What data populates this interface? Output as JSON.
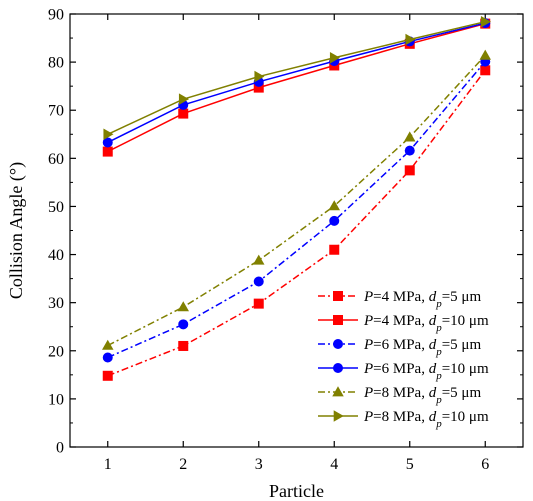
{
  "chart_data": {
    "type": "line",
    "xlabel": "Particle",
    "ylabel": "Collision Angle (°)",
    "x": [
      1,
      2,
      3,
      4,
      5,
      6
    ],
    "xlim": [
      0.5,
      6.5
    ],
    "ylim": [
      0,
      90
    ],
    "xticks": [
      "1",
      "2",
      "3",
      "4",
      "5",
      "6"
    ],
    "yticks": [
      "0",
      "10",
      "20",
      "30",
      "40",
      "50",
      "60",
      "70",
      "80",
      "90"
    ],
    "legend_position": "bottom-right",
    "grid": false,
    "series": [
      {
        "name": "P=4 MPa, dp=5 μm",
        "label": {
          "p": "P",
          "pv": "=4 MPa, ",
          "d": "d",
          "sub": "p",
          "dv": "=5 μm"
        },
        "values": [
          14.8,
          21.0,
          29.8,
          41.0,
          57.5,
          78.3
        ],
        "color": "#ff0000",
        "marker": "square",
        "dash": "dashdot"
      },
      {
        "name": "P=4 MPa, dp=10 μm",
        "label": {
          "p": "P",
          "pv": "=4 MPa, ",
          "d": "d",
          "sub": "p",
          "dv": "=10 μm"
        },
        "values": [
          61.4,
          69.3,
          74.7,
          79.3,
          83.8,
          88.0
        ],
        "color": "#ff0000",
        "marker": "square",
        "dash": "solid"
      },
      {
        "name": "P=6 MPa, dp=5 μm",
        "label": {
          "p": "P",
          "pv": "=6 MPa, ",
          "d": "d",
          "sub": "p",
          "dv": "=5 μm"
        },
        "values": [
          18.6,
          25.5,
          34.4,
          47.0,
          61.6,
          80.1
        ],
        "color": "#0000ff",
        "marker": "circle",
        "dash": "dashdot"
      },
      {
        "name": "P=6 MPa, dp=10 μm",
        "label": {
          "p": "P",
          "pv": "=6 MPa, ",
          "d": "d",
          "sub": "p",
          "dv": "=10 μm"
        },
        "values": [
          63.3,
          71.1,
          75.9,
          80.2,
          84.3,
          88.1
        ],
        "color": "#0000ff",
        "marker": "circle",
        "dash": "solid"
      },
      {
        "name": "P=8 MPa, dp=5 μm",
        "label": {
          "p": "P",
          "pv": "=8 MPa, ",
          "d": "d",
          "sub": "p",
          "dv": "=5 μm"
        },
        "values": [
          21.1,
          29.1,
          38.8,
          50.1,
          64.4,
          81.4
        ],
        "color": "#808000",
        "marker": "triangle-up",
        "dash": "dashdot"
      },
      {
        "name": "P=8 MPa, dp=10 μm",
        "label": {
          "p": "P",
          "pv": "=8 MPa, ",
          "d": "d",
          "sub": "p",
          "dv": "=10 μm"
        },
        "values": [
          65.0,
          72.3,
          77.0,
          80.9,
          84.7,
          88.4
        ],
        "color": "#808000",
        "marker": "triangle-right",
        "dash": "solid"
      }
    ]
  }
}
